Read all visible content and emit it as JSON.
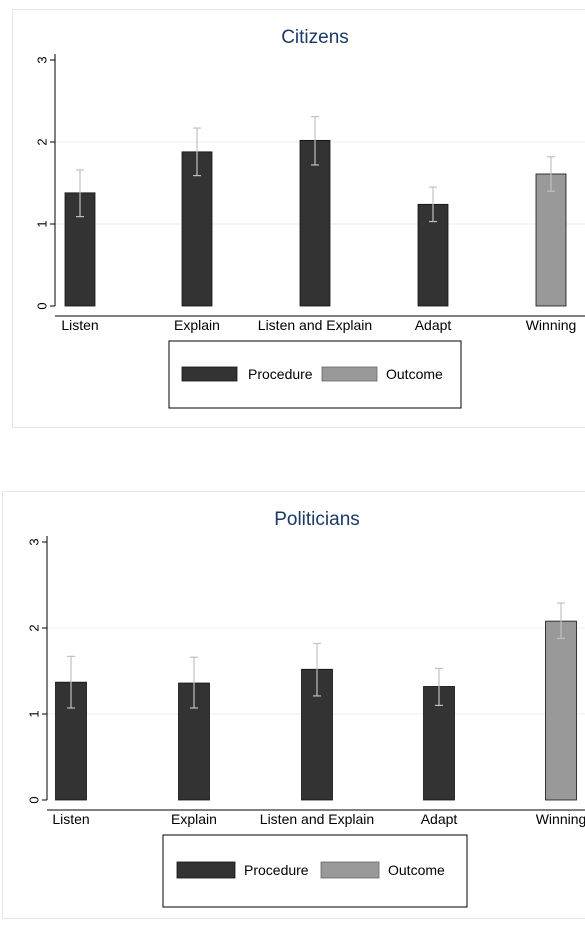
{
  "colors": {
    "procedure": "#333333",
    "outcome": "#999999",
    "title": "#1a3a66",
    "error_bar": "#c0c0c0",
    "gridline": "#ececec"
  },
  "legend": {
    "procedure_label": "Procedure",
    "outcome_label": "Outcome"
  },
  "chart_data": [
    {
      "type": "bar",
      "title": "Citizens",
      "xlabel": "",
      "ylabel": "",
      "ylim": [
        0,
        3
      ],
      "yticks": [
        "0",
        "1",
        "2",
        "3"
      ],
      "grid": true,
      "legend_position": "bottom",
      "categories": [
        "Listen",
        "Explain",
        "Listen and Explain",
        "Adapt",
        "Winning"
      ],
      "values": [
        1.38,
        1.88,
        2.02,
        1.24,
        1.61
      ],
      "error_low": [
        1.09,
        1.59,
        1.72,
        1.03,
        1.4
      ],
      "error_high": [
        1.66,
        2.17,
        2.31,
        1.45,
        1.82
      ],
      "groups": [
        "Procedure",
        "Procedure",
        "Procedure",
        "Procedure",
        "Outcome"
      ]
    },
    {
      "type": "bar",
      "title": "Politicians",
      "xlabel": "",
      "ylabel": "",
      "ylim": [
        0,
        3
      ],
      "yticks": [
        "0",
        "1",
        "2",
        "3"
      ],
      "grid": true,
      "legend_position": "bottom",
      "categories": [
        "Listen",
        "Explain",
        "Listen and Explain",
        "Adapt",
        "Winning"
      ],
      "values": [
        1.37,
        1.36,
        1.52,
        1.32,
        2.08
      ],
      "error_low": [
        1.07,
        1.07,
        1.21,
        1.1,
        1.88
      ],
      "error_high": [
        1.67,
        1.66,
        1.82,
        1.53,
        2.29
      ],
      "groups": [
        "Procedure",
        "Procedure",
        "Procedure",
        "Procedure",
        "Outcome"
      ]
    }
  ]
}
